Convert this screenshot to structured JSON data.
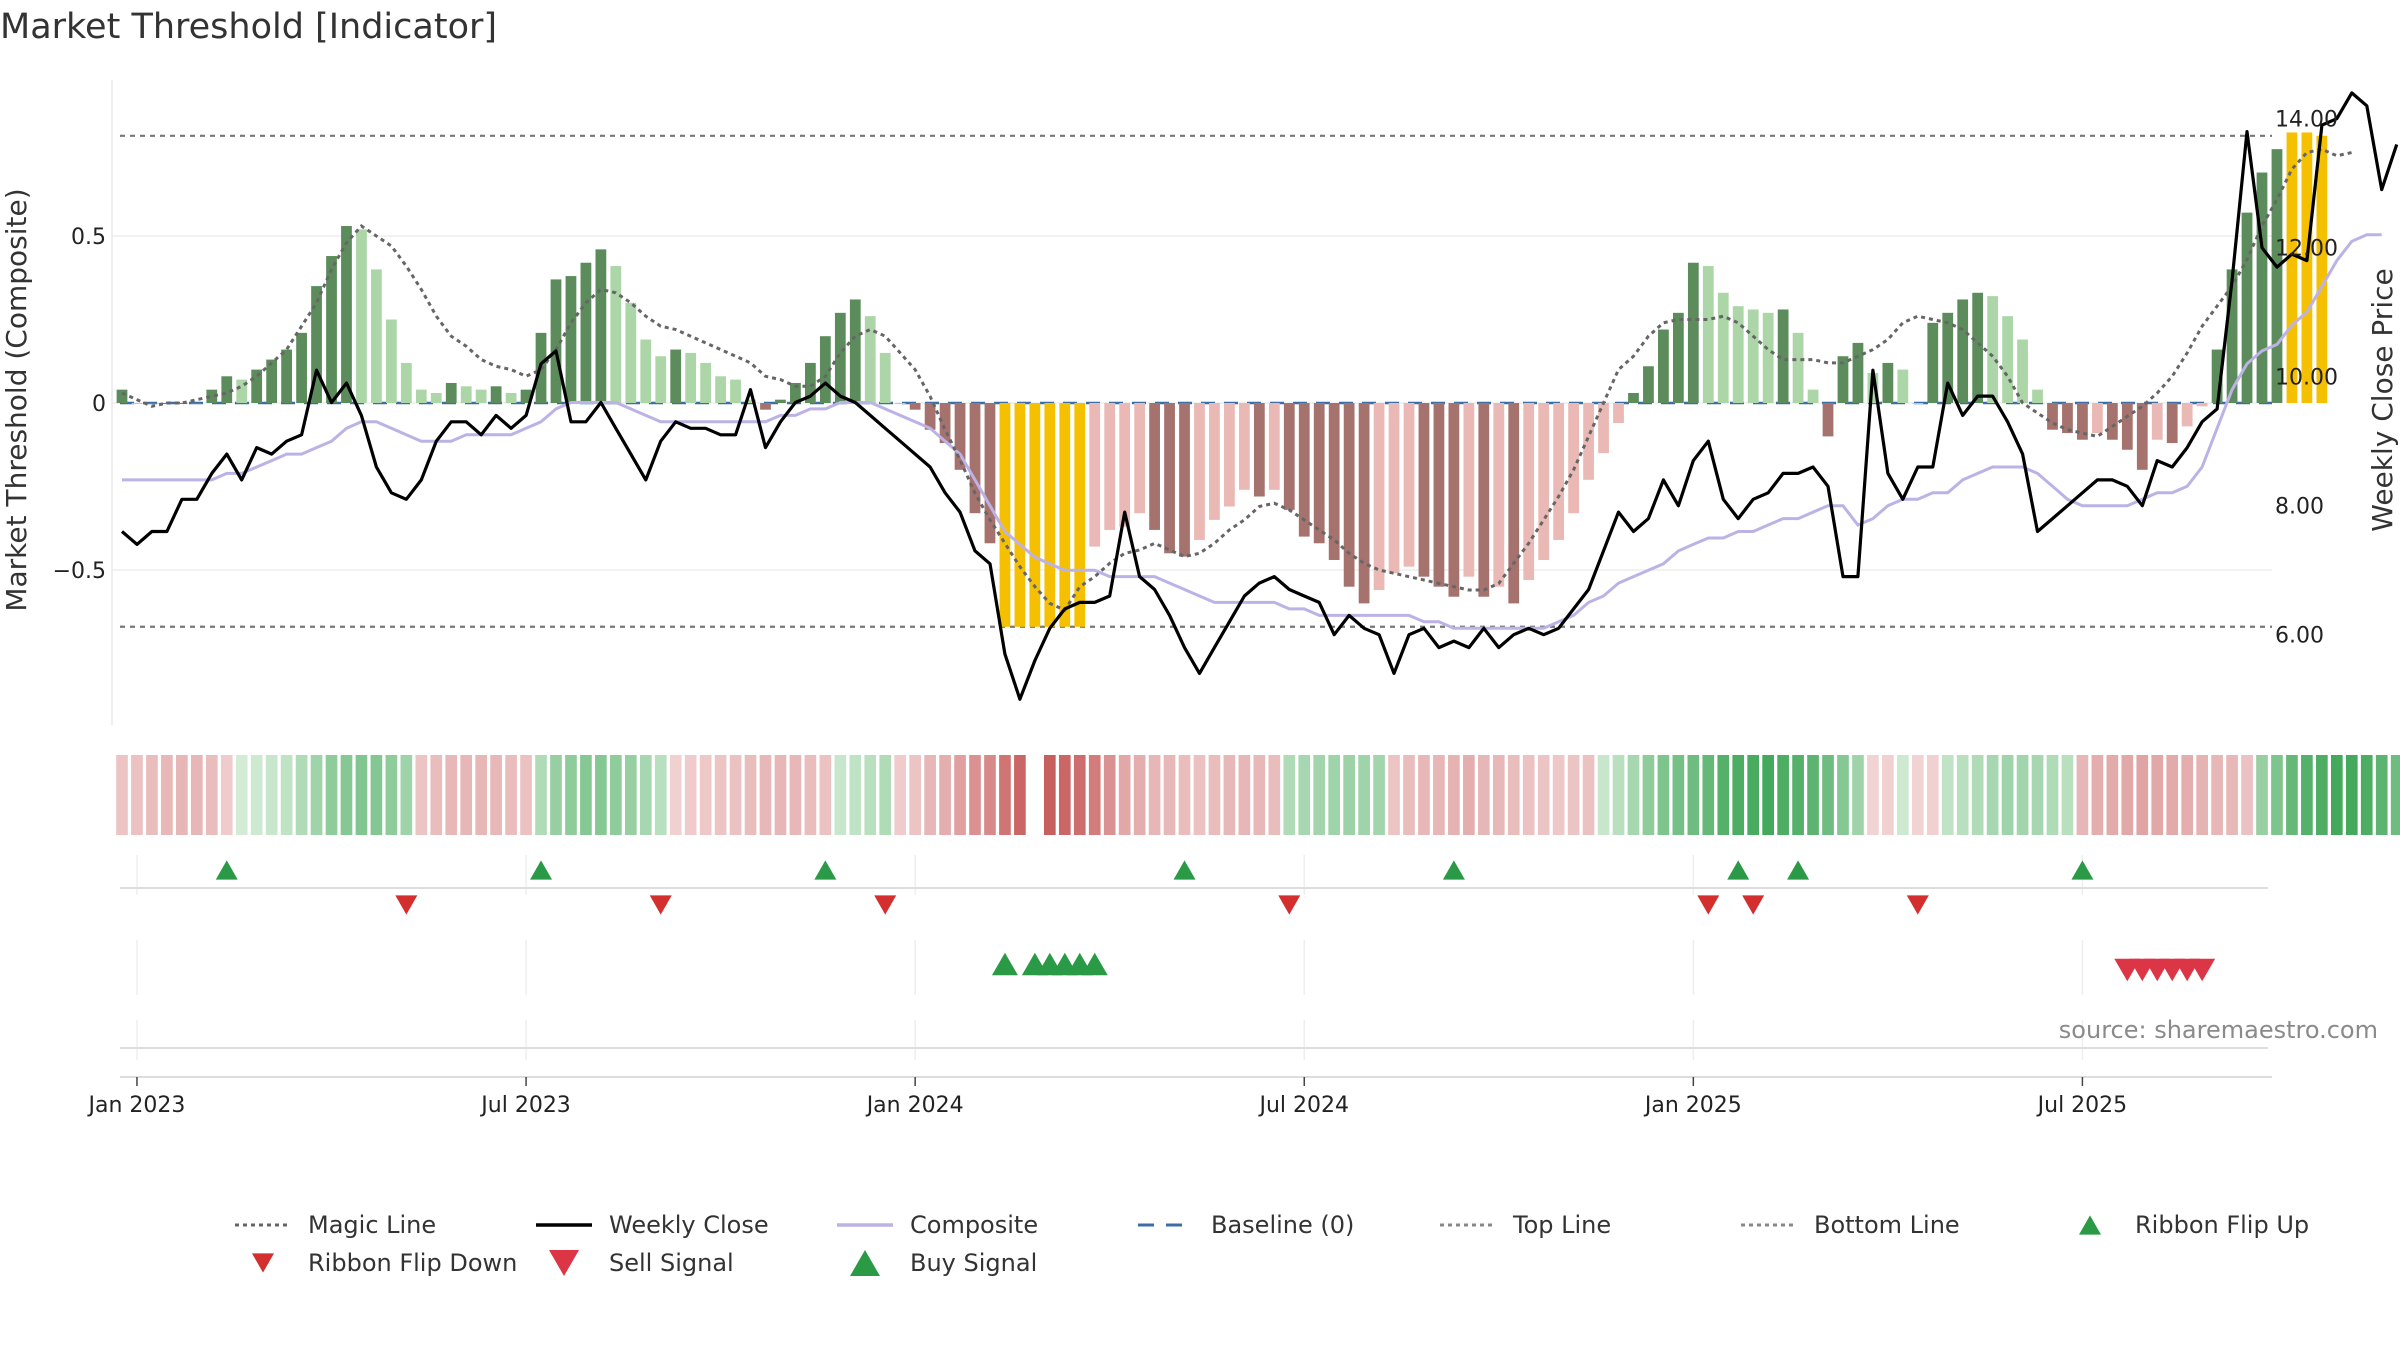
{
  "chart_data": {
    "type": "bar",
    "title": "Market Threshold [Indicator]",
    "ylabel": "Market Threshold (Composite)",
    "y2label": "Weekly Close Price",
    "source": "source: sharemaestro.com",
    "ylim": [
      -0.97,
      0.97
    ],
    "y2lim": [
      4.6,
      14.6
    ],
    "y_ticks": [
      {
        "v": 0.5,
        "label": "0.5"
      },
      {
        "v": 0,
        "label": "0"
      },
      {
        "v": -0.5,
        "label": "−0.5"
      }
    ],
    "y2_ticks": [
      {
        "v": 14,
        "label": "14.00"
      },
      {
        "v": 12,
        "label": "12.00"
      },
      {
        "v": 10,
        "label": "10.00"
      },
      {
        "v": 8,
        "label": "8.00"
      },
      {
        "v": 6,
        "label": "6.00"
      }
    ],
    "x_ticks": [
      {
        "week": 1,
        "label": "Jan 2023"
      },
      {
        "week": 27,
        "label": "Jul 2023"
      },
      {
        "week": 53,
        "label": "Jan 2024"
      },
      {
        "week": 79,
        "label": "Jul 2024"
      },
      {
        "week": 105,
        "label": "Jan 2025"
      },
      {
        "week": 131,
        "label": "Jul 2025"
      }
    ],
    "top_line": 0.8,
    "bottom_line": -0.67,
    "baseline": 0,
    "weeks": 144,
    "composite_bars": [
      0.04,
      0.0,
      0.0,
      0.0,
      0.0,
      0.0,
      0.04,
      0.08,
      0.07,
      0.1,
      0.13,
      0.16,
      0.21,
      0.35,
      0.44,
      0.53,
      0.52,
      0.4,
      0.25,
      0.12,
      0.04,
      0.03,
      0.06,
      0.05,
      0.04,
      0.05,
      0.03,
      0.04,
      0.21,
      0.37,
      0.38,
      0.42,
      0.46,
      0.41,
      0.3,
      0.19,
      0.14,
      0.16,
      0.15,
      0.12,
      0.08,
      0.07,
      0.01,
      -0.02,
      0.01,
      0.06,
      0.12,
      0.2,
      0.27,
      0.31,
      0.26,
      0.15,
      0.0,
      -0.02,
      -0.08,
      -0.12,
      -0.2,
      -0.33,
      -0.42,
      -0.67,
      -0.67,
      -0.67,
      -0.67,
      -0.67,
      -0.67,
      -0.43,
      -0.38,
      -0.37,
      -0.33,
      -0.38,
      -0.45,
      -0.46,
      -0.41,
      -0.35,
      -0.31,
      -0.26,
      -0.28,
      -0.26,
      -0.32,
      -0.4,
      -0.42,
      -0.47,
      -0.55,
      -0.6,
      -0.56,
      -0.51,
      -0.49,
      -0.52,
      -0.55,
      -0.58,
      -0.52,
      -0.58,
      -0.55,
      -0.6,
      -0.53,
      -0.47,
      -0.41,
      -0.33,
      -0.23,
      -0.15,
      -0.06,
      0.03,
      0.11,
      0.22,
      0.27,
      0.42,
      0.41,
      0.33,
      0.29,
      0.28,
      0.27,
      0.28,
      0.21,
      0.04,
      -0.1,
      0.14,
      0.18,
      0.09,
      0.12,
      0.1,
      0.0,
      0.24,
      0.27,
      0.31,
      0.33,
      0.32,
      0.26,
      0.19,
      0.04,
      -0.08,
      -0.09,
      -0.11,
      -0.09,
      -0.11,
      -0.14,
      -0.2,
      -0.11,
      -0.12,
      -0.07,
      -0.01,
      0.16,
      0.4,
      0.57,
      0.69,
      0.76,
      0.81,
      0.81,
      0.8
    ],
    "magic_line": [
      0.03,
      0.01,
      -0.01,
      0.0,
      0.0,
      0.01,
      0.02,
      0.03,
      0.05,
      0.08,
      0.12,
      0.16,
      0.23,
      0.3,
      0.4,
      0.48,
      0.53,
      0.5,
      0.47,
      0.41,
      0.34,
      0.26,
      0.2,
      0.17,
      0.13,
      0.11,
      0.1,
      0.08,
      0.1,
      0.16,
      0.24,
      0.3,
      0.34,
      0.33,
      0.3,
      0.26,
      0.23,
      0.22,
      0.2,
      0.18,
      0.16,
      0.14,
      0.12,
      0.08,
      0.07,
      0.05,
      0.05,
      0.08,
      0.15,
      0.2,
      0.22,
      0.2,
      0.15,
      0.1,
      0.02,
      -0.08,
      -0.17,
      -0.27,
      -0.35,
      -0.42,
      -0.49,
      -0.55,
      -0.6,
      -0.62,
      -0.55,
      -0.52,
      -0.48,
      -0.45,
      -0.44,
      -0.42,
      -0.44,
      -0.46,
      -0.45,
      -0.42,
      -0.38,
      -0.35,
      -0.31,
      -0.3,
      -0.32,
      -0.35,
      -0.38,
      -0.41,
      -0.45,
      -0.48,
      -0.5,
      -0.51,
      -0.52,
      -0.53,
      -0.54,
      -0.55,
      -0.56,
      -0.56,
      -0.54,
      -0.48,
      -0.42,
      -0.35,
      -0.28,
      -0.2,
      -0.1,
      0.0,
      0.1,
      0.14,
      0.2,
      0.24,
      0.25,
      0.25,
      0.25,
      0.26,
      0.24,
      0.2,
      0.16,
      0.13,
      0.13,
      0.13,
      0.12,
      0.12,
      0.14,
      0.16,
      0.19,
      0.24,
      0.26,
      0.25,
      0.24,
      0.22,
      0.18,
      0.14,
      0.08,
      0.0,
      -0.03,
      -0.06,
      -0.08,
      -0.09,
      -0.1,
      -0.07,
      -0.04,
      -0.01,
      0.03,
      0.08,
      0.15,
      0.23,
      0.29,
      0.35,
      0.43,
      0.53,
      0.61,
      0.7,
      0.75,
      0.76,
      0.74,
      0.75
    ],
    "weekly_close": [
      7.6,
      7.4,
      7.6,
      7.6,
      8.1,
      8.1,
      8.5,
      8.8,
      8.4,
      8.9,
      8.8,
      9.0,
      9.1,
      10.1,
      9.6,
      9.9,
      9.4,
      8.6,
      8.2,
      8.1,
      8.4,
      9.0,
      9.3,
      9.3,
      9.1,
      9.4,
      9.2,
      9.4,
      10.2,
      10.4,
      9.3,
      9.3,
      9.6,
      9.2,
      8.8,
      8.4,
      9.0,
      9.3,
      9.2,
      9.2,
      9.1,
      9.1,
      9.8,
      8.9,
      9.3,
      9.6,
      9.7,
      9.9,
      9.7,
      9.6,
      9.4,
      9.2,
      9.0,
      8.8,
      8.6,
      8.2,
      7.9,
      7.3,
      7.1,
      5.7,
      5.0,
      5.6,
      6.1,
      6.4,
      6.5,
      6.5,
      6.6,
      7.9,
      6.9,
      6.7,
      6.3,
      5.8,
      5.4,
      5.8,
      6.2,
      6.6,
      6.8,
      6.9,
      6.7,
      6.6,
      6.5,
      6.0,
      6.3,
      6.1,
      6.0,
      5.4,
      6.0,
      6.1,
      5.8,
      5.9,
      5.8,
      6.1,
      5.8,
      6.0,
      6.1,
      6.0,
      6.1,
      6.4,
      6.7,
      7.3,
      7.9,
      7.6,
      7.8,
      8.4,
      8.0,
      8.7,
      9.0,
      8.1,
      7.8,
      8.1,
      8.2,
      8.5,
      8.5,
      8.6,
      8.3,
      6.9,
      6.9,
      10.1,
      8.5,
      8.1,
      8.6,
      8.6,
      9.9,
      9.4,
      9.7,
      9.7,
      9.3,
      8.8,
      7.6,
      7.8,
      8.0,
      8.2,
      8.4,
      8.4,
      8.3,
      8.0,
      8.7,
      8.6,
      8.9,
      9.3,
      9.5,
      11.5,
      13.8,
      12.0,
      11.7,
      11.9,
      11.8,
      13.9,
      14.0,
      14.4,
      14.2,
      12.9,
      13.6
    ],
    "composite_line": [
      8.4,
      8.4,
      8.4,
      8.4,
      8.4,
      8.4,
      8.4,
      8.5,
      8.5,
      8.6,
      8.7,
      8.8,
      8.8,
      8.9,
      9.0,
      9.2,
      9.3,
      9.3,
      9.2,
      9.1,
      9.0,
      9.0,
      9.0,
      9.1,
      9.1,
      9.1,
      9.1,
      9.2,
      9.3,
      9.5,
      9.6,
      9.6,
      9.6,
      9.6,
      9.5,
      9.4,
      9.3,
      9.3,
      9.3,
      9.3,
      9.3,
      9.3,
      9.3,
      9.3,
      9.4,
      9.4,
      9.5,
      9.5,
      9.6,
      9.6,
      9.6,
      9.5,
      9.4,
      9.3,
      9.2,
      9.0,
      8.8,
      8.4,
      8.0,
      7.6,
      7.4,
      7.2,
      7.1,
      7.0,
      7.0,
      7.0,
      6.9,
      6.9,
      6.9,
      6.9,
      6.8,
      6.7,
      6.6,
      6.5,
      6.5,
      6.5,
      6.5,
      6.5,
      6.4,
      6.4,
      6.3,
      6.3,
      6.3,
      6.3,
      6.3,
      6.3,
      6.3,
      6.2,
      6.2,
      6.1,
      6.1,
      6.1,
      6.1,
      6.1,
      6.1,
      6.1,
      6.2,
      6.3,
      6.5,
      6.6,
      6.8,
      6.9,
      7.0,
      7.1,
      7.3,
      7.4,
      7.5,
      7.5,
      7.6,
      7.6,
      7.7,
      7.8,
      7.8,
      7.9,
      8.0,
      8.0,
      7.7,
      7.8,
      8.0,
      8.1,
      8.1,
      8.2,
      8.2,
      8.4,
      8.5,
      8.6,
      8.6,
      8.6,
      8.5,
      8.3,
      8.1,
      8.0,
      8.0,
      8.0,
      8.0,
      8.1,
      8.2,
      8.2,
      8.3,
      8.6,
      9.2,
      9.8,
      10.2,
      10.4,
      10.5,
      10.8,
      11.0,
      11.4,
      11.8,
      12.1,
      12.2,
      12.2
    ],
    "ribbon": [
      -0.2,
      -0.22,
      -0.25,
      -0.28,
      -0.3,
      -0.3,
      -0.25,
      -0.15,
      0.08,
      0.12,
      0.16,
      0.2,
      0.3,
      0.4,
      0.5,
      0.55,
      0.58,
      0.56,
      0.5,
      0.4,
      -0.2,
      -0.25,
      -0.28,
      -0.3,
      -0.3,
      -0.28,
      -0.25,
      -0.22,
      0.3,
      0.45,
      0.5,
      0.55,
      0.55,
      0.5,
      0.45,
      0.35,
      0.25,
      -0.12,
      -0.15,
      -0.18,
      -0.2,
      -0.22,
      -0.25,
      -0.28,
      -0.3,
      -0.28,
      -0.25,
      -0.22,
      0.15,
      0.2,
      0.25,
      0.3,
      -0.15,
      -0.2,
      -0.3,
      -0.35,
      -0.45,
      -0.55,
      -0.6,
      -0.75,
      -0.85,
      0.0,
      -0.9,
      -0.85,
      -0.8,
      -0.7,
      -0.55,
      -0.4,
      -0.35,
      -0.3,
      -0.28,
      -0.25,
      -0.22,
      -0.25,
      -0.28,
      -0.3,
      -0.28,
      -0.25,
      0.3,
      0.35,
      0.38,
      0.4,
      0.42,
      0.4,
      0.38,
      -0.2,
      -0.25,
      -0.28,
      -0.3,
      -0.32,
      -0.35,
      -0.3,
      -0.28,
      -0.25,
      -0.22,
      -0.2,
      -0.18,
      -0.2,
      -0.22,
      0.15,
      0.25,
      0.35,
      0.5,
      0.6,
      0.65,
      0.7,
      0.75,
      0.85,
      0.9,
      0.92,
      0.95,
      0.9,
      0.85,
      0.8,
      0.7,
      0.55,
      0.4,
      -0.1,
      -0.12,
      0.12,
      -0.1,
      -0.12,
      0.2,
      0.25,
      0.3,
      0.35,
      0.4,
      0.38,
      0.35,
      0.3,
      0.25,
      -0.3,
      -0.35,
      -0.38,
      -0.4,
      -0.42,
      -0.4,
      -0.38,
      -0.35,
      -0.32,
      -0.3,
      -0.28,
      -0.22,
      0.45,
      0.6,
      0.75,
      0.85,
      0.9,
      0.95,
      0.95,
      0.9,
      0.8,
      0.7,
      0.6
    ],
    "ribbon_flip_up": [
      7,
      28,
      47,
      71,
      89,
      108,
      112,
      131
    ],
    "ribbon_flip_down": [
      19,
      36,
      51,
      78,
      106,
      109,
      120
    ],
    "buy_signal": [
      59,
      61,
      62,
      63,
      64,
      65
    ],
    "sell_signal": [
      134,
      135,
      136,
      137,
      138,
      139
    ],
    "series_colors": {
      "magic_line": "#666666",
      "weekly_close": "#000000",
      "composite": "#bdb2e6",
      "baseline": "#3b6ea5",
      "top_line": "#777777",
      "bottom_line": "#777777",
      "pos_strong": "#5c8c5c",
      "pos_weak": "#acd6a8",
      "neg_strong": "#a6726e",
      "neg_weak": "#eab9b5",
      "extreme": "#f5c000",
      "flip_up": "#2a9a46",
      "flip_down": "#d32f2f",
      "buy": "#2a9a46",
      "sell": "#dc3545"
    },
    "legend": [
      {
        "label": "Magic Line",
        "kind": "dotted",
        "color": "#666666"
      },
      {
        "label": "Weekly Close",
        "kind": "solid",
        "color": "#000000"
      },
      {
        "label": "Composite",
        "kind": "solid",
        "color": "#bdb2e6"
      },
      {
        "label": "Baseline (0)",
        "kind": "dashed",
        "color": "#3b6ea5"
      },
      {
        "label": "Top Line",
        "kind": "dotted",
        "color": "#888888"
      },
      {
        "label": "Bottom Line",
        "kind": "dotted",
        "color": "#888888"
      },
      {
        "label": "Ribbon Flip Up",
        "kind": "tri-up-small",
        "color": "#2a9a46"
      },
      {
        "label": "Ribbon Flip Down",
        "kind": "tri-down-small",
        "color": "#d32f2f"
      },
      {
        "label": "Sell Signal",
        "kind": "tri-down",
        "color": "#dc3545"
      },
      {
        "label": "Buy Signal",
        "kind": "tri-up",
        "color": "#2a9a46"
      }
    ],
    "grid": true,
    "legend_position": "bottom"
  }
}
